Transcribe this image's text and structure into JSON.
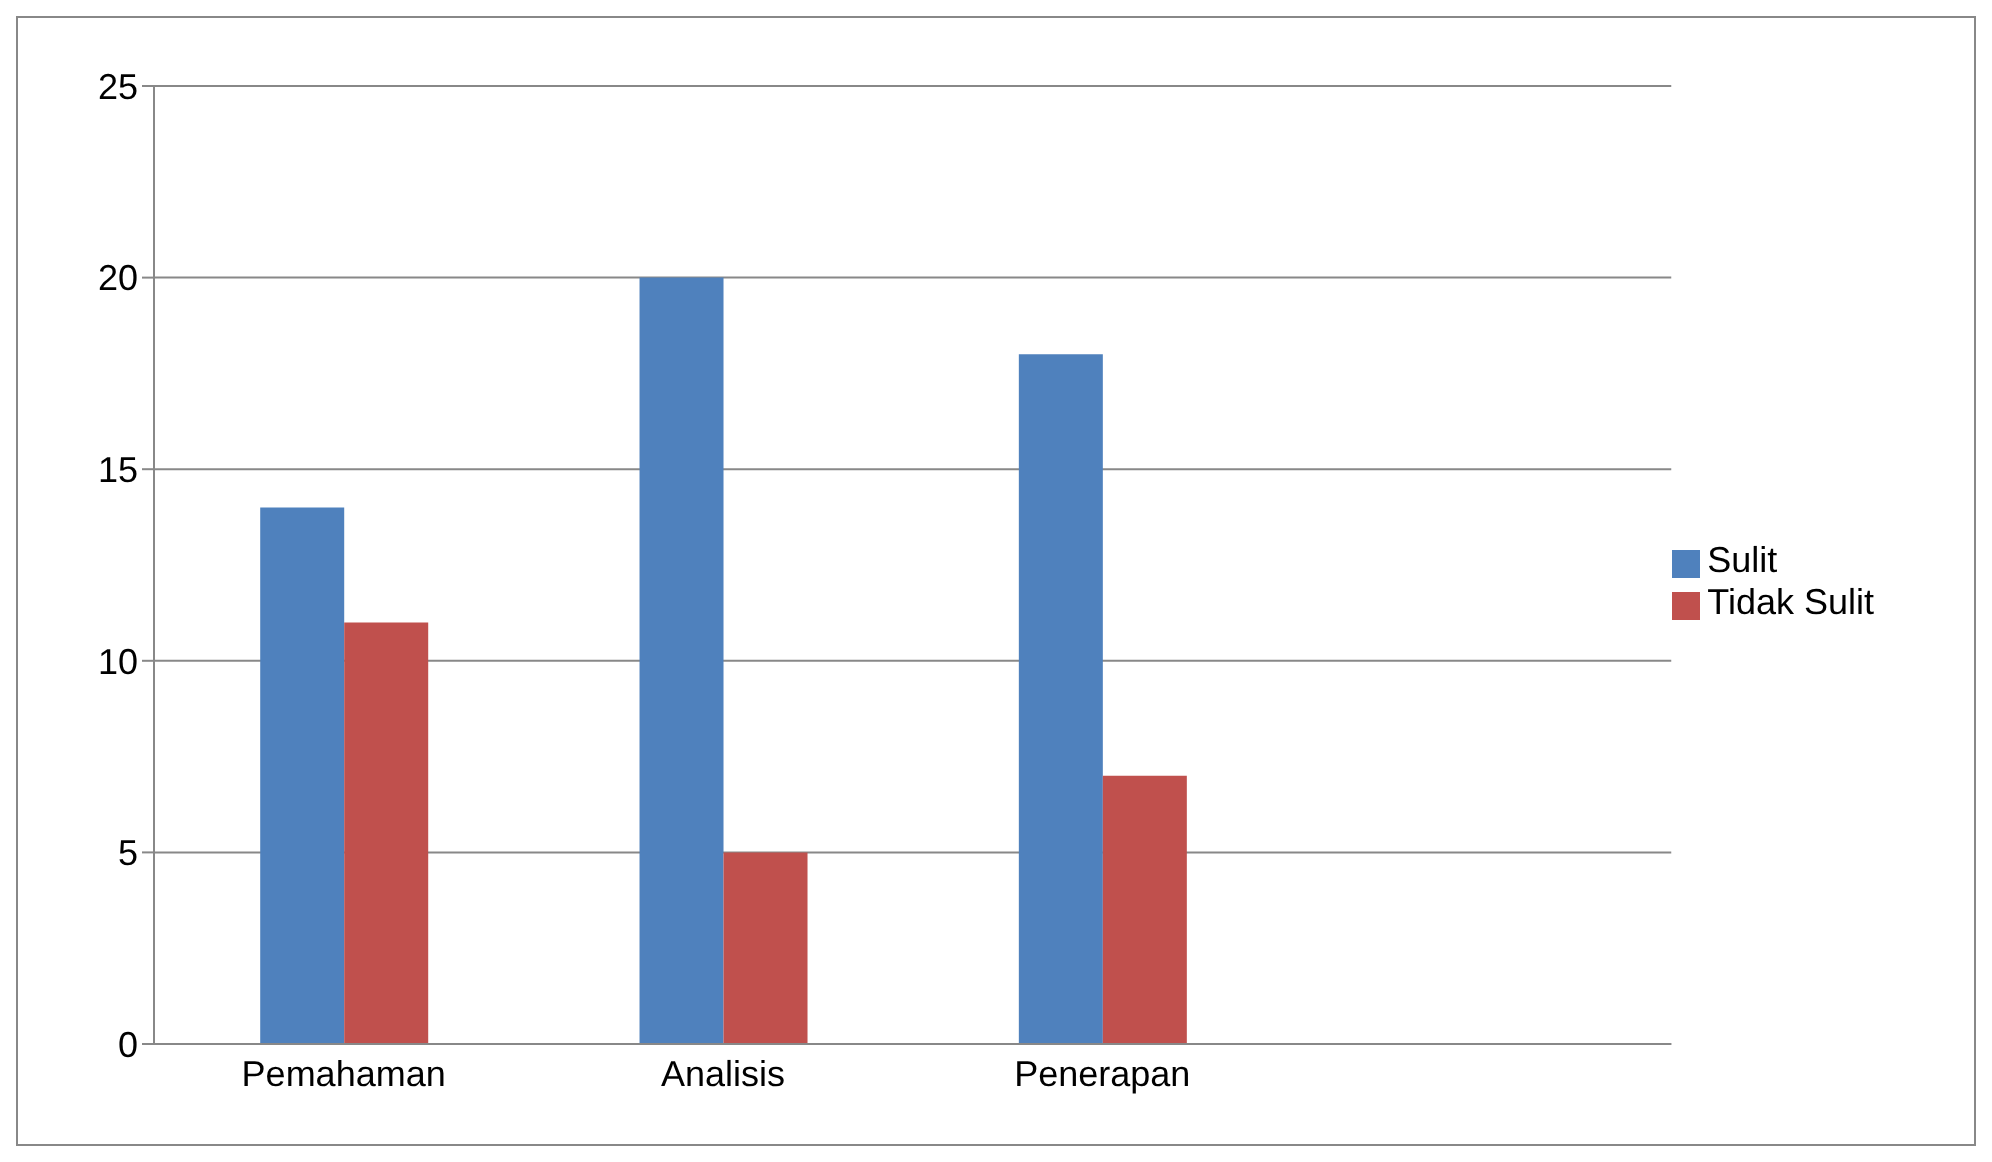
{
  "chart_data": {
    "type": "bar",
    "categories": [
      "Pemahaman",
      "Analisis",
      "Penerapan",
      null
    ],
    "series": [
      {
        "name": "Sulit",
        "color": "#4f81bd",
        "values": [
          14,
          20,
          18,
          null
        ]
      },
      {
        "name": "Tidak Sulit",
        "color": "#c0504d",
        "values": [
          11,
          5,
          7,
          null
        ]
      }
    ],
    "ylim": [
      0,
      25
    ],
    "yticks": [
      0,
      5,
      10,
      15,
      20,
      25
    ],
    "grid": "y",
    "legend": "right"
  }
}
